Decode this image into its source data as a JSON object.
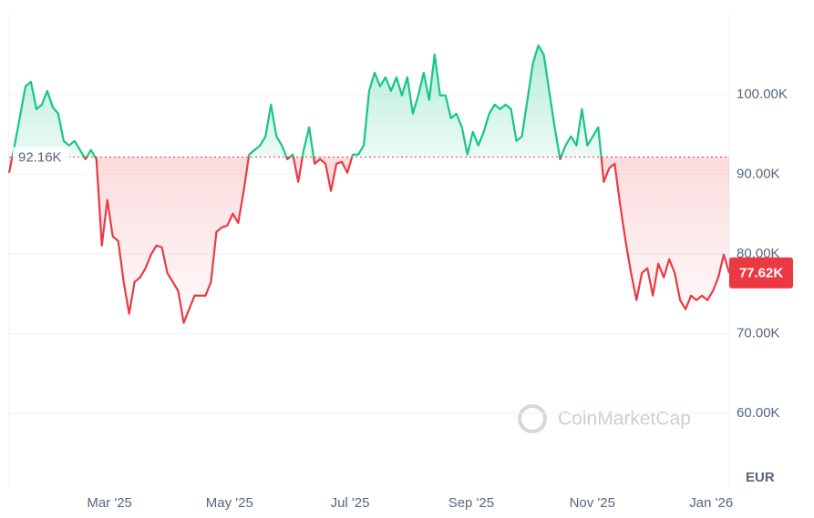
{
  "chart_data": {
    "type": "line",
    "series": [
      {
        "name": "Price",
        "values": [
          90180,
          93610,
          97260,
          101030,
          101600,
          98170,
          98740,
          100460,
          98400,
          97600,
          94180,
          93610,
          94180,
          93040,
          91890,
          93040,
          91890,
          81050,
          86760,
          82190,
          81620,
          76480,
          72490,
          76480,
          77050,
          78200,
          79910,
          81050,
          80820,
          77620,
          76480,
          75340,
          71350,
          73060,
          74770,
          74770,
          74770,
          76480,
          82760,
          83330,
          83560,
          85050,
          83900,
          87900,
          92470,
          93040,
          93610,
          94750,
          98740,
          94750,
          93610,
          91890,
          92470,
          89040,
          93040,
          95890,
          91320,
          91890,
          91320,
          87900,
          91320,
          91550,
          90180,
          92470,
          92470,
          93610,
          100460,
          102740,
          101030,
          102170,
          100460,
          102170,
          99890,
          102170,
          97600,
          99890,
          102740,
          99320,
          105020,
          99890,
          99890,
          97030,
          97600,
          95890,
          92470,
          95320,
          93610,
          95320,
          97600,
          98740,
          98170,
          98740,
          98170,
          94180,
          94750,
          99320,
          103880,
          106160,
          105020,
          100460,
          95890,
          91890,
          93610,
          94750,
          93610,
          98170,
          93610,
          94750,
          95890,
          89040,
          90750,
          91320,
          86180,
          81620,
          77620,
          74200,
          77620,
          78200,
          74770,
          78770,
          77050,
          79340,
          77620,
          74200,
          73060,
          74770,
          74200,
          74770,
          74200,
          75340,
          77050,
          79910,
          77620
        ]
      }
    ],
    "up_color": "#16c784",
    "down_color": "#ea3943",
    "baseline": {
      "value": 92160,
      "label": "92.16K"
    },
    "last_price": {
      "value": 77620,
      "label": "77.62K"
    },
    "xlim": [
      0,
      132
    ],
    "xticks": [
      {
        "value": 18.4,
        "label": "Mar '25"
      },
      {
        "value": 40.4,
        "label": "May '25"
      },
      {
        "value": 62.5,
        "label": "Jul '25"
      },
      {
        "value": 84.7,
        "label": "Sep '25"
      },
      {
        "value": 106.9,
        "label": "Nov '25"
      },
      {
        "value": 128.7,
        "label": "Jan '26"
      }
    ],
    "ylim": [
      50750,
      110150
    ],
    "yticks": [
      {
        "value": 60000,
        "label": "60.00K"
      },
      {
        "value": 70000,
        "label": "70.00K"
      },
      {
        "value": 80000,
        "label": "80.00K"
      },
      {
        "value": 90000,
        "label": "90.00K"
      },
      {
        "value": 100000,
        "label": "100.00K"
      }
    ],
    "currency": "EUR",
    "watermark": "CoinMarketCap",
    "grid": true
  }
}
